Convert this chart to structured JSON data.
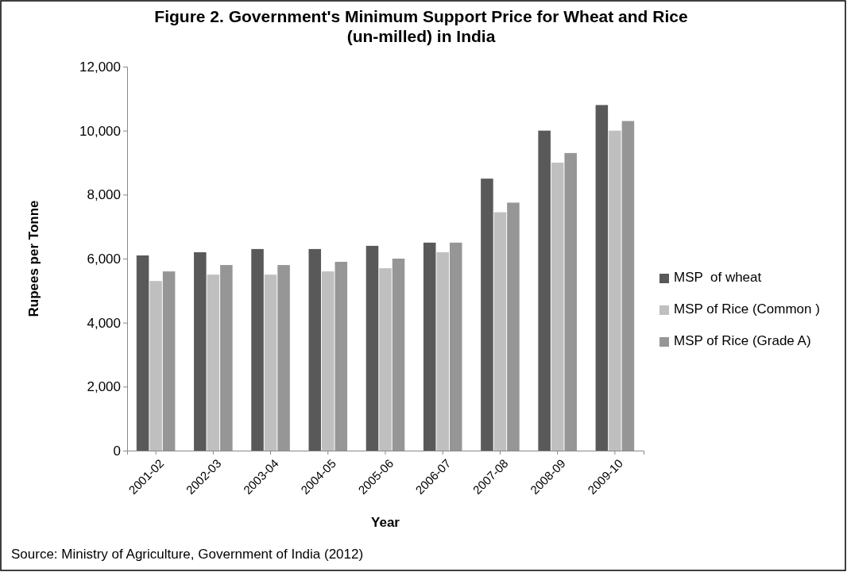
{
  "chart_data": {
    "type": "bar",
    "title": "Figure 2. Government's Minimum Support Price for Wheat and Rice (un-milled) in India",
    "xlabel": "Year",
    "ylabel": "Rupees per Tonne",
    "categories": [
      "2001-02",
      "2002-03",
      "2003-04",
      "2004-05",
      "2005-06",
      "2006-07",
      "2007-08",
      "2008-09",
      "2009-10"
    ],
    "series": [
      {
        "name": "MSP  of wheat",
        "color": "#595959",
        "values": [
          6100,
          6200,
          6300,
          6300,
          6400,
          6500,
          8500,
          10000,
          10800
        ]
      },
      {
        "name": "MSP of Rice (Common )",
        "color": "#bfbfbf",
        "values": [
          5300,
          5500,
          5500,
          5600,
          5700,
          6200,
          7450,
          9000,
          10000
        ]
      },
      {
        "name": "MSP of Rice (Grade A)",
        "color": "#969696",
        "values": [
          5600,
          5800,
          5800,
          5900,
          6000,
          6500,
          7750,
          9300,
          10300
        ]
      }
    ],
    "ylim": [
      0,
      12000
    ],
    "yticks": [
      {
        "value": 0,
        "label": "0"
      },
      {
        "value": 2000,
        "label": "2,000"
      },
      {
        "value": 4000,
        "label": "4,000"
      },
      {
        "value": 6000,
        "label": "6,000"
      },
      {
        "value": 8000,
        "label": "8,000"
      },
      {
        "value": 10000,
        "label": "10,000"
      },
      {
        "value": 12000,
        "label": "12,000"
      }
    ],
    "legend": "right",
    "annotations": [
      "Source: Ministry of Agriculture, Government of India (2012)"
    ]
  }
}
